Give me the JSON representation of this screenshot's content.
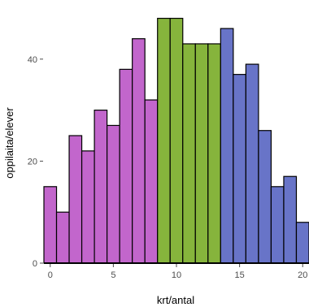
{
  "chart_data": {
    "type": "bar",
    "xlabel": "krt/antal",
    "ylabel": "oppilaita/elever",
    "xlim": [
      -0.5,
      20.5
    ],
    "ylim": [
      0,
      50
    ],
    "grid": false,
    "x_ticks": [
      0,
      5,
      10,
      15,
      20
    ],
    "y_ticks": [
      0,
      20,
      40
    ],
    "bins": [
      0,
      1,
      2,
      3,
      4,
      5,
      6,
      7,
      8,
      9,
      10,
      11,
      12,
      13,
      14,
      15,
      16,
      17,
      18,
      19,
      20
    ],
    "series": [
      {
        "color": "#c266cc",
        "x": [
          0,
          1,
          2,
          3,
          4,
          5,
          6,
          7,
          8
        ],
        "values": [
          15,
          10,
          25,
          22,
          30,
          27,
          38,
          44,
          32
        ]
      },
      {
        "color": "#86b43c",
        "x": [
          9,
          10,
          11,
          12,
          13
        ],
        "values": [
          48,
          48,
          43,
          43,
          43
        ]
      },
      {
        "color": "#6874c8",
        "x": [
          14,
          15,
          16,
          17,
          18,
          19,
          20
        ],
        "values": [
          46,
          37,
          39,
          26,
          15,
          17,
          8
        ]
      }
    ]
  }
}
